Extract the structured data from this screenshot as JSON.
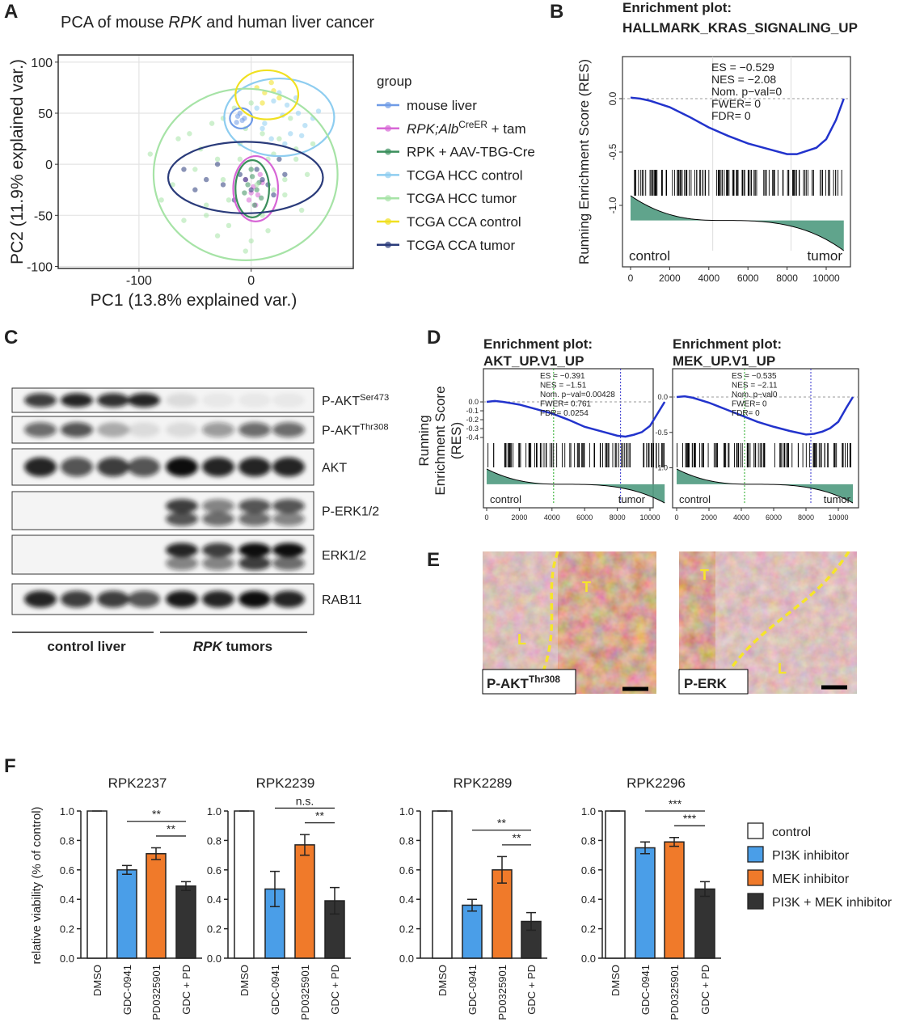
{
  "panels": [
    "A",
    "B",
    "C",
    "D",
    "E",
    "F"
  ],
  "blot": {
    "rows": [
      [
        {
          "text": "P-AKT"
        },
        {
          "text": "Ser473",
          "style": "sup"
        }
      ],
      [
        {
          "text": "P-AKT"
        },
        {
          "text": "Thr308",
          "style": "sup"
        }
      ],
      [
        {
          "text": "AKT"
        }
      ],
      [
        {
          "text": "P-ERK1/2"
        }
      ],
      [
        {
          "text": "ERK1/2"
        }
      ],
      [
        {
          "text": "RAB11"
        }
      ]
    ],
    "groups": [
      [
        {
          "text": "control liver",
          "style": "bold"
        }
      ],
      [
        {
          "text": "RPK",
          "style": "bolditalic"
        },
        {
          "text": " tumors",
          "style": "bold"
        }
      ]
    ]
  },
  "ihc": [
    {
      "label": [
        {
          "text": "P-AKT",
          "style": "bold"
        },
        {
          "text": "Thr308",
          "style": "sup"
        }
      ],
      "tumor": "T",
      "liver": "L"
    },
    {
      "label": [
        {
          "text": "P-ERK",
          "style": "bold"
        }
      ],
      "tumor": "T",
      "liver": "L"
    }
  ],
  "chart_data": [
    {
      "type": "scatter",
      "title": [
        {
          "text": "PCA of mouse "
        },
        {
          "text": "RPK",
          "style": "italic"
        },
        {
          "text": " and human liver cancer"
        }
      ],
      "xlabel": "PC1 (13.8% explained var.)",
      "ylabel": "PC2 (11.9% explained var.)",
      "legend_title": "group",
      "xlim": [
        -172,
        91
      ],
      "ylim": [
        -102,
        107
      ],
      "xticks": [
        -100,
        0
      ],
      "yticks": [
        -100,
        -50,
        0,
        50,
        100
      ],
      "grid": true,
      "series": [
        {
          "name": "mouse liver",
          "color": "#6f9be6",
          "x": [
            -12,
            -8,
            -10,
            -6,
            -13
          ],
          "values": [
            47,
            43,
            50,
            45,
            41
          ],
          "ellipse": {
            "cx": -9,
            "cy": 45,
            "rx": 10,
            "ry": 10
          }
        },
        {
          "name": [
            {
              "text": "RPK;Alb",
              "style": "italic"
            },
            {
              "text": "CreER",
              "style": "sup"
            },
            {
              "text": " + tam"
            }
          ],
          "color": "#d766d6",
          "x": [
            -5,
            2,
            6,
            10,
            -2,
            4,
            8,
            0
          ],
          "values": [
            -15,
            -22,
            -30,
            -18,
            -35,
            -40,
            -10,
            -28
          ],
          "ellipse": {
            "cx": 4,
            "cy": -24,
            "rx": 20,
            "ry": 32
          }
        },
        {
          "name": "RPK + AAV-TBG-Cre",
          "color": "#3b8f5c",
          "x": [
            -3,
            1,
            5,
            9,
            -6,
            3,
            7,
            0
          ],
          "values": [
            -20,
            -12,
            -25,
            -33,
            -28,
            -40,
            -18,
            -5
          ],
          "ellipse": {
            "cx": 1,
            "cy": -24,
            "rx": 15,
            "ry": 28
          }
        },
        {
          "name": "TCGA HCC control",
          "color": "#8ecdf0",
          "x": [
            5,
            12,
            20,
            28,
            35,
            42,
            48,
            55,
            18,
            25,
            32,
            40,
            10,
            30,
            45,
            60
          ],
          "values": [
            55,
            40,
            62,
            48,
            30,
            50,
            38,
            45,
            25,
            70,
            58,
            65,
            35,
            20,
            28,
            52
          ],
          "ellipse": {
            "cx": 25,
            "cy": 46,
            "rx": 49,
            "ry": 38
          }
        },
        {
          "name": "TCGA HCC tumor",
          "color": "#a6e3a6",
          "x": [
            -90,
            -70,
            -55,
            -40,
            -30,
            -20,
            -10,
            0,
            10,
            20,
            30,
            40,
            50,
            -80,
            -60,
            -45,
            -35,
            -25,
            -15,
            -5,
            5,
            15,
            25,
            35,
            45,
            -50,
            -30,
            -10,
            10,
            30,
            -65,
            -20,
            0,
            20,
            40,
            -40,
            -5,
            15,
            -25,
            55
          ],
          "values": [
            10,
            -20,
            30,
            -40,
            5,
            -60,
            20,
            -75,
            -50,
            10,
            -30,
            5,
            -10,
            -35,
            -55,
            15,
            40,
            -15,
            55,
            35,
            -20,
            -65,
            25,
            45,
            -45,
            -5,
            -70,
            5,
            30,
            -15,
            25,
            -35,
            60,
            -25,
            15,
            -50,
            -85,
            5,
            45,
            20
          ],
          "ellipse": {
            "cx": -5,
            "cy": -10,
            "rx": 82,
            "ry": 84
          }
        },
        {
          "name": "TCGA CCA control",
          "color": "#f0e020",
          "x": [
            5,
            12,
            18,
            25,
            10,
            20
          ],
          "values": [
            75,
            70,
            80,
            65,
            60,
            72
          ],
          "ellipse": {
            "cx": 14,
            "cy": 68,
            "rx": 28,
            "ry": 24
          }
        },
        {
          "name": "TCGA CCA tumor",
          "color": "#2a3b7a",
          "x": [
            -60,
            -40,
            -25,
            -10,
            0,
            10,
            20,
            -30,
            -15,
            5,
            15,
            -50,
            30,
            -5,
            25
          ],
          "values": [
            -5,
            -15,
            -20,
            -10,
            -25,
            -15,
            -30,
            0,
            -35,
            -5,
            -20,
            -25,
            -10,
            -15,
            5
          ],
          "ellipse": {
            "cx": -5,
            "cy": -13,
            "rx": 69,
            "ry": 35
          }
        }
      ]
    },
    {
      "type": "gsea",
      "title": [
        "Enrichment plot:",
        "HALLMARK_KRAS_SIGNALING_UP"
      ],
      "ylabel": [
        "Running Enrichment Score (RES)"
      ],
      "x": [
        0,
        500,
        1000,
        2000,
        3000,
        4000,
        5000,
        6000,
        7000,
        8000,
        8500,
        9000,
        9500,
        10000,
        10500,
        10900
      ],
      "values": [
        0.01,
        0.0,
        -0.02,
        -0.08,
        -0.17,
        -0.27,
        -0.35,
        -0.42,
        -0.47,
        -0.52,
        -0.52,
        -0.49,
        -0.46,
        -0.38,
        -0.2,
        0.0
      ],
      "color": "#2233cc",
      "xlim": [
        -413,
        11240
      ],
      "ylim": [
        -1.538,
        0.394
      ],
      "xticks": [
        0,
        2000,
        4000,
        6000,
        8000,
        10000
      ],
      "yticks": [
        {
          "value": 0,
          "label": "0.0"
        },
        -0.5,
        {
          "value": -1,
          "label": "-1.0"
        }
      ],
      "annotations": [
        "ES = −0.529",
        "NES = −2.08",
        "Nom. p−val=0",
        "FWER= 0",
        "FDR= 0"
      ],
      "left_label": "control",
      "right_label": "tumor"
    },
    {
      "type": "gsea",
      "title": [
        "Enrichment plot:",
        "AKT_UP.V1_UP"
      ],
      "ylabel": [
        "Running",
        "Enrichment Score",
        "(RES)"
      ],
      "x": [
        0,
        500,
        1000,
        2000,
        3000,
        4000,
        5000,
        6000,
        7000,
        8000,
        8500,
        9000,
        9500,
        10000,
        10500,
        10900
      ],
      "values": [
        0.0,
        0.01,
        0.0,
        -0.03,
        -0.08,
        -0.13,
        -0.2,
        -0.28,
        -0.33,
        -0.38,
        -0.39,
        -0.37,
        -0.34,
        -0.27,
        -0.12,
        0.0
      ],
      "color": "#2233cc",
      "xlim": [
        -198,
        10198
      ],
      "ylim": [
        -0.436,
        0.373
      ],
      "xticks": [
        0,
        2000,
        4000,
        6000,
        8000,
        10000
      ],
      "yticks": [
        {
          "value": 0,
          "label": "0.0"
        },
        -0.1,
        -0.2,
        -0.3,
        -0.4
      ],
      "annotations": [
        "ES = −0.391",
        "NES = −1.51",
        "Nom. p−val=0.00428",
        "FWER= 0.761",
        "FDR= 0.0254"
      ],
      "left_label": "control",
      "right_label": "tumor"
    },
    {
      "type": "gsea",
      "title": [
        "Enrichment plot:",
        "MEK_UP.V1_UP"
      ],
      "x": [
        0,
        500,
        1000,
        2000,
        3000,
        4000,
        5000,
        6000,
        7000,
        8000,
        8500,
        9000,
        9500,
        10000,
        10500,
        10900
      ],
      "values": [
        0.0,
        0.01,
        -0.01,
        -0.08,
        -0.17,
        -0.26,
        -0.35,
        -0.42,
        -0.48,
        -0.53,
        -0.52,
        -0.49,
        -0.44,
        -0.35,
        -0.15,
        0.0
      ],
      "color": "#2233cc",
      "xlim": [
        -250,
        11250
      ],
      "ylim": [
        -1.074,
        0.4
      ],
      "xticks": [
        0,
        2000,
        4000,
        6000,
        8000,
        10000
      ],
      "yticks": [
        {
          "value": 0,
          "label": "0.0"
        },
        -0.5,
        {
          "value": -1,
          "label": "-1.0"
        }
      ],
      "annotations": [
        "ES = −0.535",
        "NES = −2.11",
        "Nom. p−val0",
        "FWER= 0",
        "FDR= 0"
      ],
      "left_label": "control",
      "right_label": "tumor"
    },
    {
      "type": "bar",
      "title": "RPK2237",
      "ylabel": "relative viability (% of control)",
      "categories": [
        "DMSO",
        "GDC-0941",
        "PD0325901",
        "GDC + PD"
      ],
      "values": [
        1.0,
        0.6,
        0.71,
        0.49
      ],
      "errors": [
        0,
        0.03,
        0.04,
        0.03
      ],
      "colors": [
        "#ffffff",
        "#4a9ee8",
        "#f07a2a",
        "#333333"
      ],
      "ylim": [
        0,
        1
      ],
      "yticks": [
        {
          "value": 0,
          "label": "0.0"
        },
        0.2,
        0.4,
        0.6,
        0.8,
        {
          "value": 1,
          "label": "1.0"
        }
      ],
      "significance": [
        {
          "from": 1,
          "to": 3,
          "label": "**"
        },
        {
          "from": 2,
          "to": 3,
          "label": "**"
        }
      ]
    },
    {
      "type": "bar",
      "title": "RPK2239",
      "categories": [
        "DMSO",
        "GDC-0941",
        "PD0325901",
        "GDC + PD"
      ],
      "values": [
        1.0,
        0.47,
        0.77,
        0.39
      ],
      "errors": [
        0,
        0.12,
        0.07,
        0.09
      ],
      "colors": [
        "#ffffff",
        "#4a9ee8",
        "#f07a2a",
        "#333333"
      ],
      "ylim": [
        0,
        1
      ],
      "yticks": [
        {
          "value": 0,
          "label": "0.0"
        },
        0.2,
        0.4,
        0.6,
        0.8,
        {
          "value": 1,
          "label": "1.0"
        }
      ],
      "significance": [
        {
          "from": 1,
          "to": 3,
          "label": "n.s."
        },
        {
          "from": 2,
          "to": 3,
          "label": "**"
        }
      ]
    },
    {
      "type": "bar",
      "title": "RPK2289",
      "categories": [
        "DMSO",
        "GDC-0941",
        "PD0325901",
        "GDC + PD"
      ],
      "values": [
        1.0,
        0.36,
        0.6,
        0.25
      ],
      "errors": [
        0,
        0.04,
        0.09,
        0.06
      ],
      "colors": [
        "#ffffff",
        "#4a9ee8",
        "#f07a2a",
        "#333333"
      ],
      "ylim": [
        0,
        1
      ],
      "yticks": [
        {
          "value": 0,
          "label": "0.0"
        },
        0.2,
        0.4,
        0.6,
        0.8,
        {
          "value": 1,
          "label": "1.0"
        }
      ],
      "significance": [
        {
          "from": 1,
          "to": 3,
          "label": "**"
        },
        {
          "from": 2,
          "to": 3,
          "label": "**"
        }
      ]
    },
    {
      "type": "bar",
      "title": "RPK2296",
      "categories": [
        "DMSO",
        "GDC-0941",
        "PD0325901",
        "GDC + PD"
      ],
      "values": [
        1.0,
        0.75,
        0.79,
        0.47
      ],
      "errors": [
        0,
        0.04,
        0.03,
        0.05
      ],
      "colors": [
        "#ffffff",
        "#4a9ee8",
        "#f07a2a",
        "#333333"
      ],
      "ylim": [
        0,
        1
      ],
      "yticks": [
        {
          "value": 0,
          "label": "0.0"
        },
        0.2,
        0.4,
        0.6,
        0.8,
        {
          "value": 1,
          "label": "1.0"
        }
      ],
      "significance": [
        {
          "from": 1,
          "to": 3,
          "label": "***"
        },
        {
          "from": 2,
          "to": 3,
          "label": "***"
        }
      ],
      "legend": [
        {
          "name": "control",
          "color": "#ffffff"
        },
        {
          "name": "PI3K inhibitor",
          "color": "#4a9ee8"
        },
        {
          "name": "MEK inhibitor",
          "color": "#f07a2a"
        },
        {
          "name": "PI3K + MEK inhibitor",
          "color": "#333333"
        }
      ]
    }
  ]
}
